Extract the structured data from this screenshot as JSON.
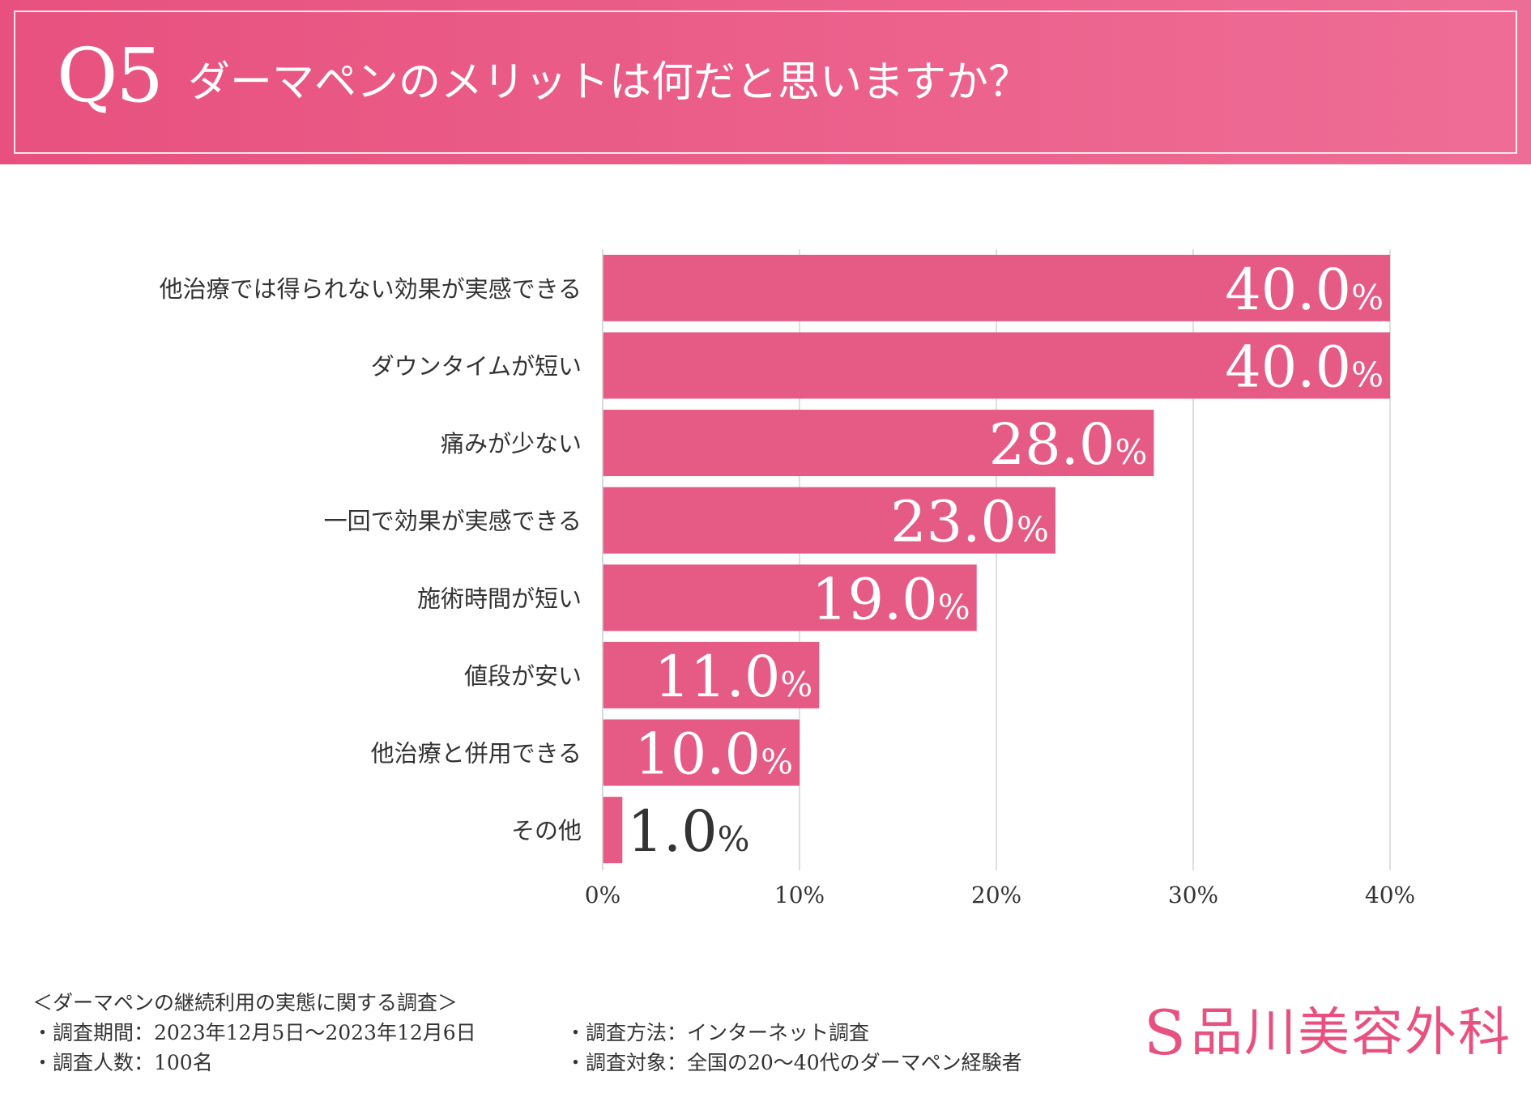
{
  "header": {
    "q_number": "Q5",
    "title": "ダーマペンのメリットは何だと思いますか？"
  },
  "chart_data": {
    "type": "bar",
    "orientation": "horizontal",
    "title": "ダーマペンのメリットは何だと思いますか？",
    "categories": [
      "他治療では得られない効果が実感できる",
      "ダウンタイムが短い",
      "痛みが少ない",
      "一回で効果が実感できる",
      "施術時間が短い",
      "値段が安い",
      "他治療と併用できる",
      "その他"
    ],
    "values": [
      40.0,
      40.0,
      28.0,
      23.0,
      19.0,
      11.0,
      10.0,
      1.0
    ],
    "value_labels": [
      "40.0",
      "40.0",
      "28.0",
      "23.0",
      "19.0",
      "11.0",
      "10.0",
      "1.0"
    ],
    "value_suffix": "%",
    "x_ticks": [
      "0%",
      "10%",
      "20%",
      "30%",
      "40%"
    ],
    "xlim": [
      0,
      40
    ],
    "grid": true,
    "bar_color": "#e65a86"
  },
  "footer": {
    "survey_title": "＜ダーマペンの継続利用の実態に関する調査＞",
    "period": "・調査期間：2023年12月5日～2023年12月6日",
    "count": "・調査人数：100名",
    "method": "・調査方法：インターネット調査",
    "target": "・調査対象：全国の20～40代のダーマペン経験者"
  },
  "logo": {
    "mark": "S",
    "text": "品川美容外科",
    "color": "#e8517f"
  }
}
